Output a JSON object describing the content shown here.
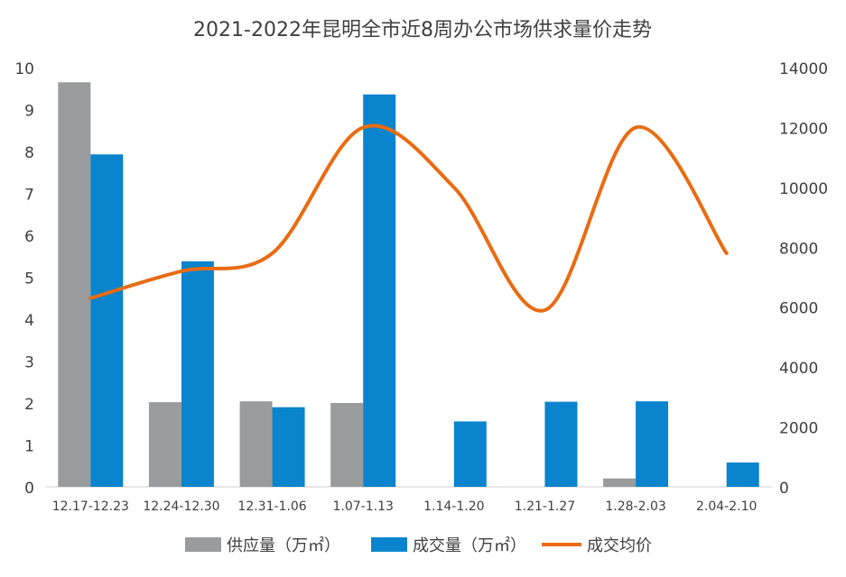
{
  "chart_data": {
    "type": "bar+line",
    "title": "2021-2022年昆明全市近8周办公市场供求量价走势",
    "categories": [
      "12.17-12.23",
      "12.24-12.30",
      "12.31-1.06",
      "1.07-1.13",
      "1.14-1.20",
      "1.21-1.27",
      "1.28-2.03",
      "2.04-2.10"
    ],
    "y_left": {
      "range": [
        0,
        10
      ],
      "ticks": [
        0,
        1,
        2,
        3,
        4,
        5,
        6,
        7,
        8,
        9,
        10
      ]
    },
    "y_right": {
      "range": [
        0,
        14000
      ],
      "ticks": [
        0,
        2000,
        4000,
        6000,
        8000,
        10000,
        12000,
        14000
      ]
    },
    "series": [
      {
        "name": "供应量（万㎡）",
        "type": "bar",
        "axis": "left",
        "color": "#9a9b9d",
        "values": [
          9.65,
          2.02,
          2.04,
          2.0,
          0,
          0,
          0.2,
          0
        ]
      },
      {
        "name": "成交量（万㎡）",
        "type": "bar",
        "axis": "left",
        "color": "#0a84cc",
        "values": [
          7.93,
          5.38,
          1.9,
          9.36,
          1.56,
          2.03,
          2.04,
          0.58
        ]
      },
      {
        "name": "成交均价",
        "type": "line",
        "axis": "right",
        "color": "#e86c12",
        "smooth": true,
        "values": [
          6300,
          7200,
          7800,
          12000,
          10000,
          5900,
          12000,
          7800
        ]
      }
    ],
    "legend": "bottom",
    "grid": false
  }
}
